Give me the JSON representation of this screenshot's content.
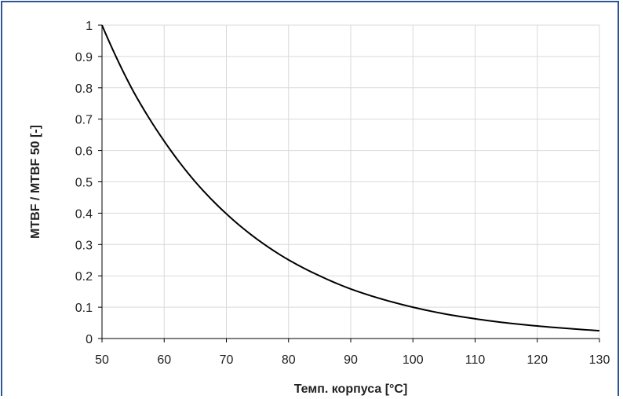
{
  "chart_data": {
    "type": "line",
    "title": "",
    "xlabel": "Темп. корпуса [°C]",
    "ylabel": "MTBF / MTBF 50 [-]",
    "xlim": [
      50,
      130
    ],
    "ylim": [
      0,
      1
    ],
    "x_ticks": [
      "50",
      "60",
      "70",
      "80",
      "90",
      "100",
      "110",
      "120",
      "130"
    ],
    "y_ticks": [
      "0",
      "0.1",
      "0.2",
      "0.3",
      "0.4",
      "0.5",
      "0.6",
      "0.7",
      "0.8",
      "0.9",
      "1"
    ],
    "grid": true,
    "legend": "none",
    "colors": {
      "line": "#000000",
      "grid": "#d9d9d9",
      "frame": "#2f5597"
    },
    "series": [
      {
        "x": [
          50,
          55,
          60,
          65,
          70,
          75,
          80,
          85,
          90,
          95,
          100,
          105,
          110,
          115,
          120,
          125,
          130
        ],
        "y": [
          1.0,
          0.79,
          0.63,
          0.5,
          0.398,
          0.316,
          0.251,
          0.2,
          0.158,
          0.126,
          0.1,
          0.079,
          0.063,
          0.05,
          0.04,
          0.032,
          0.025
        ]
      }
    ]
  }
}
